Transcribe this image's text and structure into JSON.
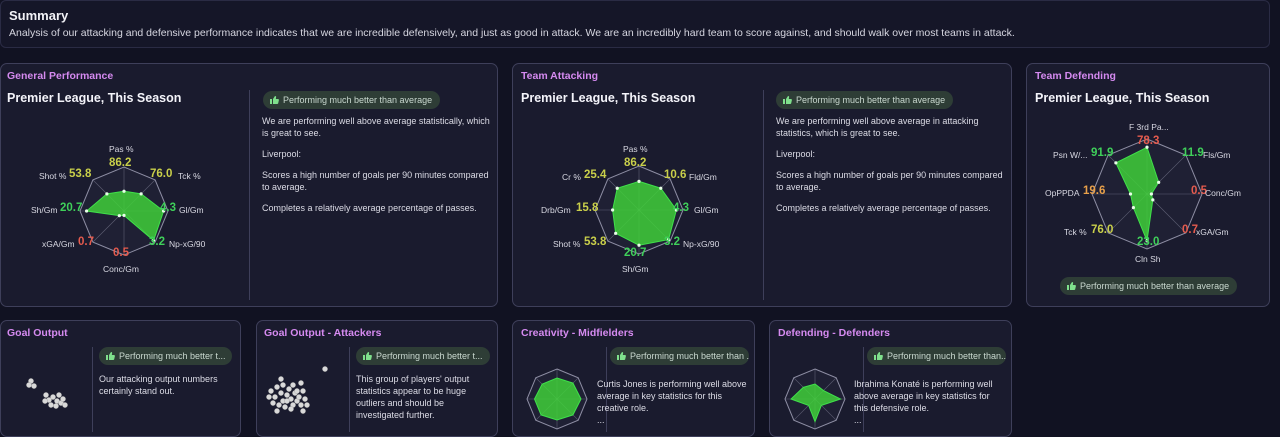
{
  "summary": {
    "title": "Summary",
    "text": "Analysis of our attacking and defensive performance indicates that we are incredible defensively, and just as good in attack. We are an incredibly hard team to score against, and should walk over most teams in attack."
  },
  "colors": {
    "accent": "#d58af0",
    "good": "#3fd05a",
    "bad": "#e55b4e",
    "mid": "#c9cf4a",
    "warn": "#e8a04a"
  },
  "general": {
    "title": "General Performance",
    "subtitle": "Premier League, This Season",
    "badge": "Performing much better than average",
    "paragraphs": [
      "We are performing well above average statistically, which is great to see.",
      "Liverpool:",
      "Scores a high number of goals per 90 minutes compared to average.",
      "Completes a relatively average percentage of passes."
    ],
    "metrics": [
      {
        "label": "Pas %",
        "value": "86.2"
      },
      {
        "label": "Tck %",
        "value": "76.0"
      },
      {
        "label": "Gl/Gm",
        "value": "4.3"
      },
      {
        "label": "Np-xG/90",
        "value": "3.2"
      },
      {
        "label": "Conc/Gm",
        "value": "0.5"
      },
      {
        "label": "xGA/Gm",
        "value": "0.7"
      },
      {
        "label": "Sh/Gm",
        "value": "20.7"
      },
      {
        "label": "Shot %",
        "value": "53.8"
      }
    ]
  },
  "attacking": {
    "title": "Team Attacking",
    "subtitle": "Premier League, This Season",
    "badge": "Performing much better than average",
    "paragraphs": [
      "We are performing well above average in attacking statistics, which is great to see.",
      "Liverpool:",
      "Scores a high number of goals per 90 minutes compared to average.",
      "Completes a relatively average percentage of passes."
    ],
    "metrics": [
      {
        "label": "Pas %",
        "value": "86.2"
      },
      {
        "label": "Fld/Gm",
        "value": "10.6"
      },
      {
        "label": "Gl/Gm",
        "value": "4.3"
      },
      {
        "label": "Np-xG/90",
        "value": "3.2"
      },
      {
        "label": "Sh/Gm",
        "value": "20.7"
      },
      {
        "label": "Shot %",
        "value": "53.8"
      },
      {
        "label": "Drb/Gm",
        "value": "15.8"
      },
      {
        "label": "Cr %",
        "value": "25.4"
      }
    ]
  },
  "defending": {
    "title": "Team Defending",
    "subtitle": "Premier League, This Season",
    "badge": "Performing much better than average",
    "metrics": [
      {
        "label": "F 3rd Pa...",
        "value": "78.3"
      },
      {
        "label": "Fls/Gm",
        "value": "11.9"
      },
      {
        "label": "Conc/Gm",
        "value": "0.5"
      },
      {
        "label": "xGA/Gm",
        "value": "0.7"
      },
      {
        "label": "Cln Sh",
        "value": "23.0"
      },
      {
        "label": "Tck %",
        "value": "76.0"
      },
      {
        "label": "OpPPDA",
        "value": "19.6"
      },
      {
        "label": "Psn W/...",
        "value": "91.9"
      }
    ]
  },
  "goal_output": {
    "title": "Goal Output",
    "badge": "Performing much better t...",
    "text": "Our attacking output numbers certainly stand out."
  },
  "goal_output_attackers": {
    "title": "Goal Output - Attackers",
    "badge": "Performing much better t...",
    "text": "This group of players' output statistics appear to be huge outliers and should be investigated further."
  },
  "creativity": {
    "title": "Creativity - Midfielders",
    "badge": "Performing much better than ...",
    "text": "Curtis Jones is performing well above average in key statistics for this creative role.",
    "ellipsis": "..."
  },
  "defenders": {
    "title": "Defending - Defenders",
    "badge": "Performing much better than...",
    "text": "Ibrahima Konaté is performing well above average in key statistics for this defensive role.",
    "ellipsis": "..."
  }
}
